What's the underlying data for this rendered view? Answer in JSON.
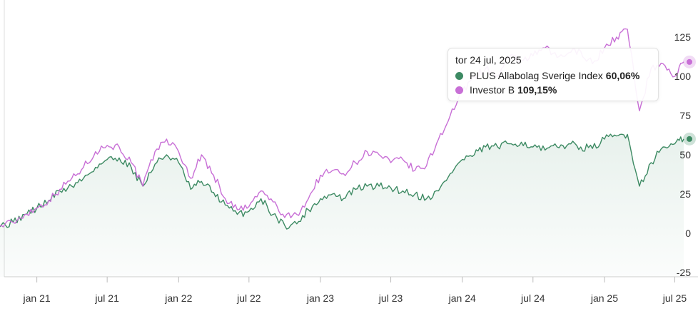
{
  "chart_data": {
    "type": "area",
    "x": [
      "2020-09-01",
      "2020-10-01",
      "2020-11-01",
      "2020-12-01",
      "2021-01-01",
      "2021-02-01",
      "2021-03-01",
      "2021-04-01",
      "2021-05-01",
      "2021-06-01",
      "2021-07-01",
      "2021-08-01",
      "2021-09-01",
      "2021-10-01",
      "2021-11-01",
      "2021-12-01",
      "2022-01-01",
      "2022-02-01",
      "2022-03-01",
      "2022-04-01",
      "2022-05-01",
      "2022-06-01",
      "2022-07-01",
      "2022-08-01",
      "2022-09-01",
      "2022-10-01",
      "2022-11-01",
      "2022-12-01",
      "2023-01-01",
      "2023-02-01",
      "2023-03-01",
      "2023-04-01",
      "2023-05-01",
      "2023-06-01",
      "2023-07-01",
      "2023-08-01",
      "2023-09-01",
      "2023-10-01",
      "2023-11-01",
      "2023-12-01",
      "2024-01-01",
      "2024-02-01",
      "2024-03-01",
      "2024-04-01",
      "2024-05-01",
      "2024-06-01",
      "2024-07-01",
      "2024-08-01",
      "2024-09-01",
      "2024-10-01",
      "2024-11-01",
      "2024-12-01",
      "2025-01-01",
      "2025-02-01",
      "2025-03-01",
      "2025-04-01",
      "2025-05-01",
      "2025-06-01",
      "2025-07-01",
      "2025-07-24"
    ],
    "series": [
      {
        "name": "PLUS Allabolag Sverige Index",
        "color": "#3d8a63",
        "values": [
          -3,
          5,
          7,
          12,
          16,
          21,
          27,
          30,
          35,
          42,
          47,
          48,
          42,
          30,
          44,
          50,
          45,
          28,
          33,
          26,
          18,
          12,
          14,
          22,
          12,
          5,
          6,
          15,
          22,
          25,
          22,
          28,
          30,
          30,
          29,
          27,
          25,
          22,
          27,
          38,
          47,
          50,
          55,
          55,
          57,
          58,
          55,
          53,
          55,
          57,
          55,
          54,
          60,
          62,
          63,
          30,
          45,
          55,
          57,
          60.06
        ]
      },
      {
        "name": "Investor B",
        "color": "#c86fd6",
        "values": [
          -3,
          5,
          7,
          12,
          16,
          21,
          28,
          35,
          42,
          52,
          56,
          55,
          45,
          30,
          52,
          60,
          52,
          35,
          50,
          37,
          22,
          15,
          17,
          27,
          20,
          10,
          12,
          22,
          37,
          40,
          38,
          45,
          52,
          50,
          45,
          47,
          40,
          43,
          60,
          75,
          90,
          100,
          105,
          100,
          112,
          110,
          113,
          118,
          112,
          115,
          116,
          108,
          118,
          125,
          130,
          78,
          105,
          108,
          100,
          109.15
        ]
      }
    ],
    "tick_labels_x": [
      {
        "date": "2021-01-01",
        "label": "jan 21"
      },
      {
        "date": "2021-07-01",
        "label": "jul 21"
      },
      {
        "date": "2022-01-01",
        "label": "jan 22"
      },
      {
        "date": "2022-07-01",
        "label": "jul 22"
      },
      {
        "date": "2023-01-01",
        "label": "jan 23"
      },
      {
        "date": "2023-07-01",
        "label": "jul 23"
      },
      {
        "date": "2024-01-01",
        "label": "jan 24"
      },
      {
        "date": "2024-07-01",
        "label": "jul 24"
      },
      {
        "date": "2025-01-01",
        "label": "jan 25"
      },
      {
        "date": "2025-07-01",
        "label": "jul 25"
      }
    ],
    "tick_labels_y": [
      "125",
      "100",
      "75",
      "50",
      "25",
      "0",
      "-25"
    ],
    "ylim": [
      -25,
      125
    ],
    "grid": false
  },
  "tooltip": {
    "date": "tor 24 jul, 2025",
    "rows": [
      {
        "label": "PLUS Allabolag Sverige Index",
        "value": "60,06%",
        "color": "#3d8a63"
      },
      {
        "label": "Investor B",
        "value": "109,15%",
        "color": "#c86fd6"
      }
    ]
  }
}
